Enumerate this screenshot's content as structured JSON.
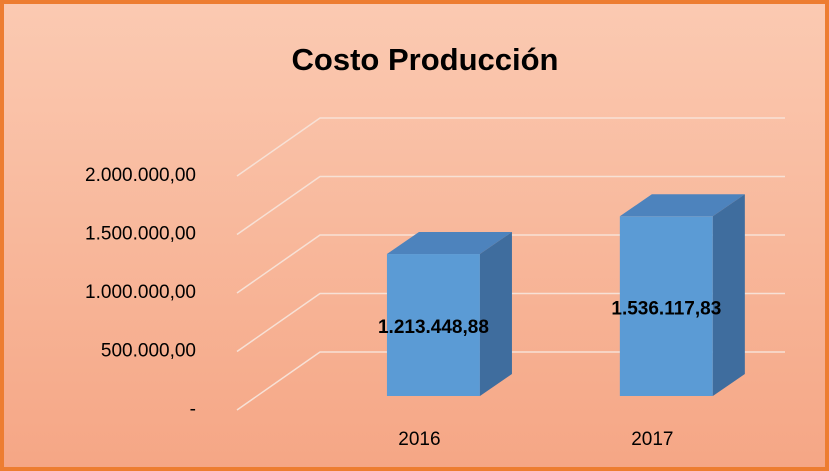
{
  "chart_data": {
    "type": "bar3d",
    "title": "Costo Producción",
    "categories": [
      "2016",
      "2017"
    ],
    "values": [
      1213448.88,
      1536117.83
    ],
    "value_labels": [
      "1.213.448,88",
      "1.536.117,83"
    ],
    "color": "#5b9bd5",
    "ylim": [
      0,
      2000000
    ],
    "yticks": [
      {
        "value": 0,
        "label": "-"
      },
      {
        "value": 500000,
        "label": "500.000,00"
      },
      {
        "value": 1000000,
        "label": "1.000.000,00"
      },
      {
        "value": 1500000,
        "label": "1.500.000,00"
      },
      {
        "value": 2000000,
        "label": "2.000.000,00"
      }
    ],
    "grid": true
  }
}
